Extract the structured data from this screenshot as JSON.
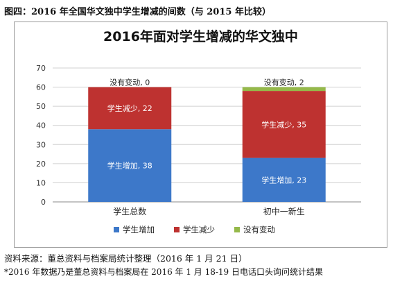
{
  "figure": {
    "caption": "图四：2016 年全国华文独中学生增减的间数（与 2015 年比较）",
    "source": "资料来源：董总资料与档案局统计整理（2016 年 1 月 21 日）",
    "footnote": "*2016 年数据乃是董总资料与档案局在 2016 年 1 月 18-19 日电话口头询问统计结果"
  },
  "colors": {
    "increase": "#3d78c9",
    "decrease": "#be3230",
    "nochange": "#95b94a"
  },
  "chart_data": {
    "type": "bar",
    "stacked": true,
    "title": "2016年面对学生增减的华文独中",
    "categories": [
      "学生总数",
      "初中一新生"
    ],
    "series": [
      {
        "name": "学生增加",
        "values": [
          38,
          23
        ],
        "labels": [
          "学生增加, 38",
          "学生增加, 23"
        ]
      },
      {
        "name": "学生减少",
        "values": [
          22,
          35
        ],
        "labels": [
          "学生减少, 22",
          "学生减少, 35"
        ]
      },
      {
        "name": "没有变动",
        "values": [
          0,
          2
        ],
        "labels": [
          "没有变动, 0",
          "没有变动, 2"
        ]
      }
    ],
    "ylim": [
      0,
      70
    ],
    "yticks": [
      "0",
      "10",
      "20",
      "30",
      "40",
      "50",
      "60",
      "70"
    ],
    "grid": true,
    "legend": "bottom"
  }
}
